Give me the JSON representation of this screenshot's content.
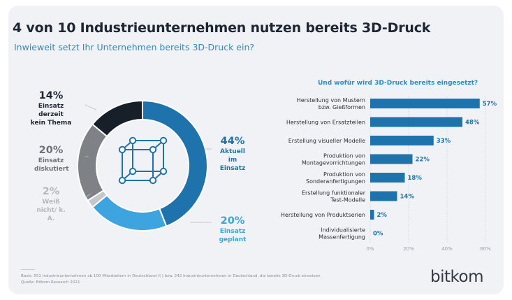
{
  "title": "4 von 10 Industrieunternehmen nutzen bereits 3D-Druck",
  "subtitle": "Inwieweit setzt Ihr Unternehmen bereits 3D-Druck ein?",
  "chart_data": [
    {
      "type": "pie",
      "variant": "donut",
      "slices": [
        {
          "pct": "44%",
          "label": "Aktuell im Einsatz",
          "value": 44,
          "color": "#1f73ad"
        },
        {
          "pct": "20%",
          "label": "Einsatz geplant",
          "value": 20,
          "color": "#3da4e0"
        },
        {
          "pct": "2%",
          "label": "Weiß nicht/ k. A.",
          "value": 2,
          "color": "#c4c7cc"
        },
        {
          "pct": "20%",
          "label": "Einsatz diskutiert",
          "value": 20,
          "color": "#7e8186"
        },
        {
          "pct": "14%",
          "label": "Einsatz derzeit kein Thema",
          "value": 14,
          "color": "#172029"
        }
      ],
      "center_icon": "3d-cube-icon"
    },
    {
      "type": "bar",
      "orientation": "horizontal",
      "title": "Und wofür wird 3D-Druck bereits eingesetzt?",
      "categories": [
        [
          "Herstellung von Mustern",
          "bzw. Gießformen"
        ],
        [
          "Herstellung von Ersatzteilen"
        ],
        [
          "Erstellung visueller Modelle"
        ],
        [
          "Produktion von",
          "Montagevorrichtungen"
        ],
        [
          "Produktion von",
          "Sonderanfertigungen"
        ],
        [
          "Erstellung funktionaler",
          "Test-Modelle"
        ],
        [
          "Herstellung von Produktserien"
        ],
        [
          "Individualisierte",
          "Massenfertigung"
        ]
      ],
      "values": [
        57,
        48,
        33,
        22,
        18,
        14,
        2,
        0
      ],
      "value_labels": [
        "57%",
        "48%",
        "33%",
        "22%",
        "18%",
        "14%",
        "2%",
        "0%"
      ],
      "xlim": [
        0,
        60
      ],
      "xticks": [
        0,
        20,
        40,
        60
      ],
      "xtick_labels": [
        "0%",
        "20%",
        "40%",
        "60%"
      ],
      "grid": true,
      "bar_color": "#1f73ad",
      "label_color": "#1f73ad"
    }
  ],
  "footnote": {
    "line1": "Basis: 551 Industrieunternehmen ab 100 Mitarbeitern in Deutschland (l.) bzw. 242 Industrieunternehmen in Deutschland, die bereits 3D-Druck einsetzen",
    "line2": "Quelle: Bitkom Research 2021"
  },
  "logo": "bitkom"
}
